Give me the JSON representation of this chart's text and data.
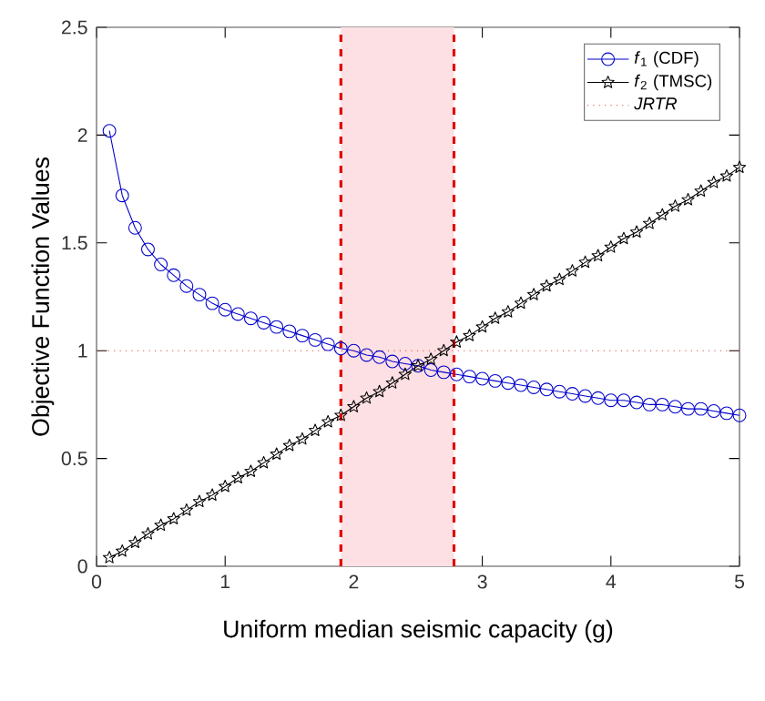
{
  "chart_data": {
    "type": "line",
    "xlabel": "Uniform median seismic capacity (g)",
    "ylabel": "Objective Function Values",
    "x": [
      0.1,
      0.2,
      0.3,
      0.4,
      0.5,
      0.6,
      0.7,
      0.8,
      0.9,
      1.0,
      1.1,
      1.2,
      1.3,
      1.4,
      1.5,
      1.6,
      1.7,
      1.8,
      1.9,
      2.0,
      2.1,
      2.2,
      2.3,
      2.4,
      2.5,
      2.6,
      2.7,
      2.8,
      2.9,
      3.0,
      3.1,
      3.2,
      3.3,
      3.4,
      3.5,
      3.6,
      3.7,
      3.8,
      3.9,
      4.0,
      4.1,
      4.2,
      4.3,
      4.4,
      4.5,
      4.6,
      4.7,
      4.8,
      4.9,
      5.0
    ],
    "series": [
      {
        "name": "*f*$_{1}$ (CDF)",
        "color": "#0000cc",
        "marker": "circle",
        "values": [
          2.02,
          1.72,
          1.57,
          1.47,
          1.4,
          1.35,
          1.3,
          1.26,
          1.22,
          1.19,
          1.17,
          1.15,
          1.13,
          1.11,
          1.09,
          1.07,
          1.05,
          1.03,
          1.01,
          1.0,
          0.98,
          0.97,
          0.95,
          0.94,
          0.93,
          0.91,
          0.9,
          0.89,
          0.88,
          0.87,
          0.86,
          0.85,
          0.84,
          0.83,
          0.82,
          0.81,
          0.8,
          0.79,
          0.78,
          0.77,
          0.77,
          0.76,
          0.75,
          0.75,
          0.74,
          0.73,
          0.73,
          0.72,
          0.71,
          0.7
        ]
      },
      {
        "name": "*f*$_{2}$ (TMSC)",
        "color": "#000000",
        "marker": "star",
        "values": [
          0.04,
          0.07,
          0.11,
          0.15,
          0.19,
          0.22,
          0.26,
          0.3,
          0.33,
          0.37,
          0.41,
          0.44,
          0.48,
          0.52,
          0.56,
          0.59,
          0.63,
          0.67,
          0.7,
          0.74,
          0.78,
          0.81,
          0.85,
          0.89,
          0.93,
          0.96,
          1.0,
          1.04,
          1.07,
          1.11,
          1.15,
          1.18,
          1.22,
          1.26,
          1.3,
          1.33,
          1.37,
          1.41,
          1.44,
          1.48,
          1.52,
          1.55,
          1.59,
          1.63,
          1.67,
          1.7,
          1.74,
          1.78,
          1.81,
          1.85
        ]
      }
    ],
    "ref_lines": [
      {
        "axis": "y",
        "value": 1,
        "label": "JRTR",
        "color": "#e03030",
        "line_style": "dotted"
      },
      {
        "axis": "x",
        "value": 1.9,
        "color": "#e00000",
        "line_style": "dashed"
      },
      {
        "axis": "x",
        "value": 2.78,
        "color": "#e00000",
        "line_style": "dashed"
      }
    ],
    "bands": [
      {
        "axis": "x",
        "from": 1.9,
        "to": 2.78,
        "color": "#fde0e3"
      }
    ],
    "xlim": [
      0,
      5
    ],
    "ylim": [
      0,
      2.5
    ],
    "xticks": [
      0,
      1,
      2,
      3,
      4,
      5
    ],
    "yticks": [
      0,
      0.5,
      1,
      1.5,
      2,
      2.5
    ],
    "legend": "top right"
  }
}
